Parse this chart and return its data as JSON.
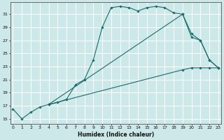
{
  "xlabel": "Humidex (Indice chaleur)",
  "bg_color": "#cde8e8",
  "grid_color": "#ffffff",
  "line_color": "#1a6b6b",
  "xlim": [
    -0.3,
    23.3
  ],
  "ylim": [
    14.2,
    32.8
  ],
  "yticks": [
    15,
    17,
    19,
    21,
    23,
    25,
    27,
    29,
    31
  ],
  "xticks": [
    0,
    1,
    2,
    3,
    4,
    5,
    6,
    7,
    8,
    9,
    10,
    11,
    12,
    13,
    14,
    15,
    16,
    17,
    18,
    19,
    20,
    21,
    22,
    23
  ],
  "curve1_x": [
    0,
    1,
    2,
    3,
    4,
    5,
    6,
    7,
    8,
    9,
    10,
    11,
    12,
    13,
    14,
    15,
    16,
    17,
    18,
    19,
    20,
    21,
    22,
    23
  ],
  "curve1_y": [
    16.5,
    15.0,
    16.0,
    16.8,
    17.2,
    17.5,
    18.0,
    20.2,
    21.0,
    24.0,
    29.0,
    32.0,
    32.2,
    32.0,
    31.5,
    32.0,
    32.2,
    32.0,
    31.2,
    31.0,
    27.5,
    27.0,
    24.0,
    22.8
  ],
  "curve2_x": [
    4,
    19,
    20,
    21,
    22,
    23
  ],
  "curve2_y": [
    17.2,
    31.0,
    28.0,
    27.0,
    24.0,
    22.8
  ],
  "curve3_x": [
    4,
    19,
    20,
    21,
    22,
    23
  ],
  "curve3_y": [
    17.2,
    22.5,
    22.8,
    22.8,
    22.8,
    22.8
  ]
}
